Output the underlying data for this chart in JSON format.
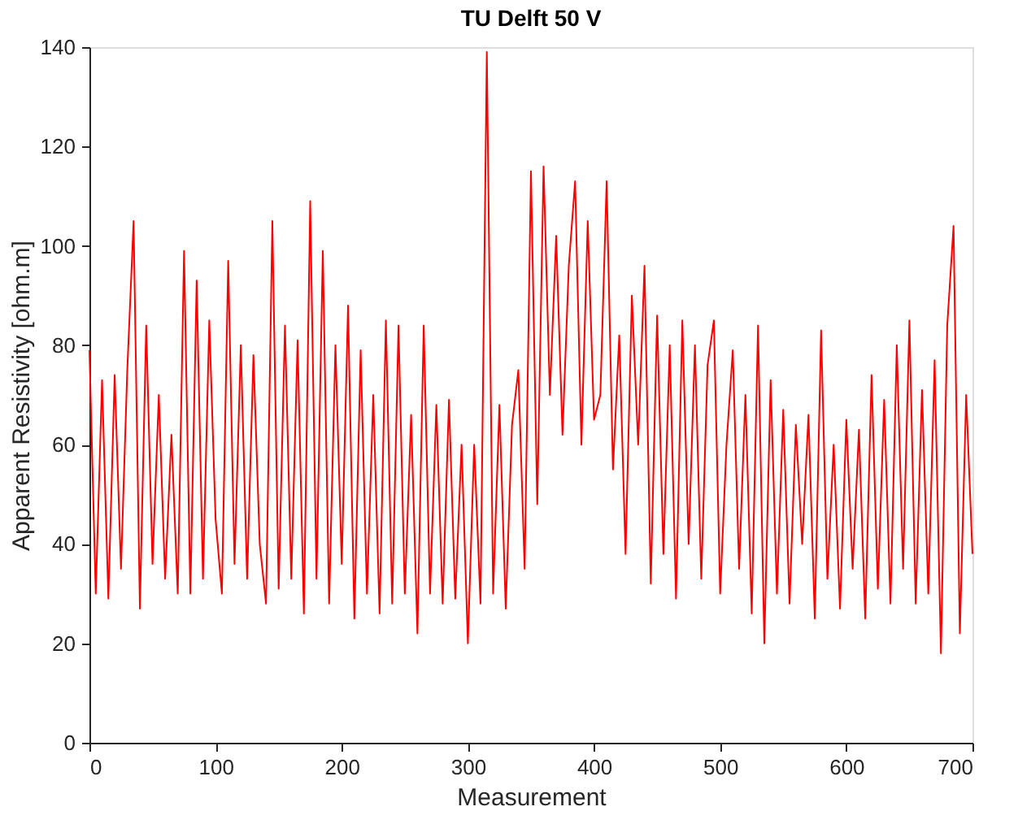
{
  "chart_data": {
    "type": "line",
    "title": "TU Delft 50 V",
    "xlabel": "Measurement",
    "ylabel": "Apparent Resistivity [ohm.m]",
    "x": [
      0,
      5,
      10,
      15,
      20,
      25,
      30,
      35,
      40,
      45,
      50,
      55,
      60,
      65,
      70,
      75,
      80,
      85,
      90,
      95,
      100,
      105,
      110,
      115,
      120,
      125,
      130,
      135,
      140,
      145,
      150,
      155,
      160,
      165,
      170,
      175,
      180,
      185,
      190,
      195,
      200,
      205,
      210,
      215,
      220,
      225,
      230,
      235,
      240,
      245,
      250,
      255,
      260,
      265,
      270,
      275,
      280,
      285,
      290,
      295,
      300,
      305,
      310,
      315,
      320,
      325,
      330,
      335,
      340,
      345,
      350,
      355,
      360,
      365,
      370,
      375,
      380,
      385,
      390,
      395,
      400,
      405,
      410,
      415,
      420,
      425,
      430,
      435,
      440,
      445,
      450,
      455,
      460,
      465,
      470,
      475,
      480,
      485,
      490,
      495,
      500,
      505,
      510,
      515,
      520,
      525,
      530,
      535,
      540,
      545,
      550,
      555,
      560,
      565,
      570,
      575,
      580,
      585,
      590,
      595,
      600,
      605,
      610,
      615,
      620,
      625,
      630,
      635,
      640,
      645,
      650,
      655,
      660,
      665,
      670,
      675,
      680,
      685,
      690,
      695,
      700
    ],
    "series": [
      {
        "color": "#ff0000",
        "values": [
          79,
          30,
          73,
          29,
          74,
          35,
          75,
          105,
          27,
          84,
          36,
          70,
          33,
          62,
          30,
          99,
          30,
          93,
          33,
          85,
          45,
          30,
          97,
          36,
          80,
          33,
          78,
          40,
          28,
          105,
          31,
          84,
          33,
          81,
          26,
          109,
          33,
          99,
          28,
          80,
          36,
          88,
          25,
          79,
          30,
          70,
          26,
          85,
          28,
          84,
          30,
          66,
          22,
          84,
          30,
          68,
          28,
          69,
          29,
          60,
          20,
          60,
          28,
          139,
          30,
          68,
          27,
          64,
          75,
          35,
          115,
          48,
          116,
          70,
          102,
          62,
          96,
          113,
          60,
          105,
          65,
          70,
          113,
          55,
          82,
          38,
          90,
          60,
          96,
          32,
          86,
          38,
          80,
          29,
          85,
          40,
          80,
          33,
          76,
          85,
          30,
          60,
          79,
          35,
          70,
          26,
          84,
          20,
          73,
          30,
          67,
          28,
          64,
          40,
          66,
          25,
          83,
          33,
          60,
          27,
          65,
          35,
          63,
          25,
          74,
          31,
          69,
          28,
          80,
          35,
          85,
          28,
          71,
          30,
          77,
          18,
          84,
          104,
          22,
          70,
          38
        ]
      }
    ],
    "xlim": [
      0,
      700
    ],
    "xticks": [
      0,
      100,
      200,
      300,
      400,
      500,
      600,
      700
    ],
    "ylim": [
      0,
      140
    ],
    "yticks": [
      0,
      20,
      40,
      60,
      80,
      100,
      120,
      140
    ],
    "grid": false,
    "marker": "none",
    "line_style": "solid"
  }
}
